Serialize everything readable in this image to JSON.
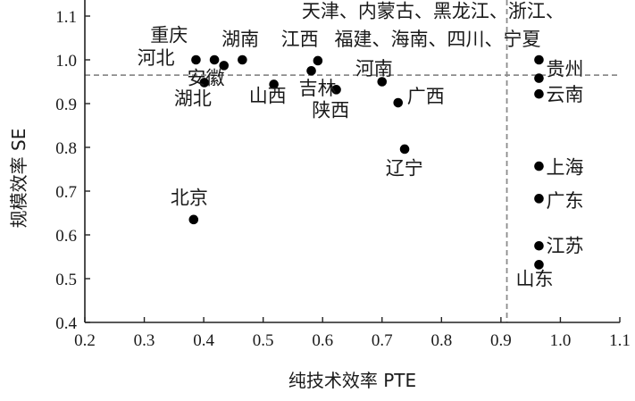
{
  "chart_data": {
    "type": "scatter",
    "xlabel": "纯技术效率 PTE",
    "ylabel": "规模效率 SE",
    "xlim": [
      0.2,
      1.1
    ],
    "ylim": [
      0.4,
      1.1
    ],
    "x_ticks": [
      "0.2",
      "0.3",
      "0.4",
      "0.5",
      "0.6",
      "0.7",
      "0.8",
      "0.9",
      "1.0",
      "1.1"
    ],
    "y_ticks": [
      "0.4",
      "0.5",
      "0.6",
      "0.7",
      "0.8",
      "0.9",
      "1.0",
      "1.1"
    ],
    "grid": false,
    "reference_lines": {
      "pte": 0.91,
      "se": 0.965
    },
    "points": [
      {
        "x": 0.387,
        "y": 1.0
      },
      {
        "x": 0.418,
        "y": 1.0
      },
      {
        "x": 0.434,
        "y": 0.987
      },
      {
        "x": 0.465,
        "y": 1.0
      },
      {
        "x": 0.401,
        "y": 0.948
      },
      {
        "x": 0.518,
        "y": 0.944
      },
      {
        "x": 0.581,
        "y": 0.975
      },
      {
        "x": 0.592,
        "y": 0.998
      },
      {
        "x": 0.623,
        "y": 0.932
      },
      {
        "x": 0.7,
        "y": 0.95
      },
      {
        "x": 0.727,
        "y": 0.902
      },
      {
        "x": 0.738,
        "y": 0.796
      },
      {
        "x": 0.383,
        "y": 0.635
      },
      {
        "x": 0.964,
        "y": 1.0
      },
      {
        "x": 0.964,
        "y": 0.958
      },
      {
        "x": 0.964,
        "y": 0.922
      },
      {
        "x": 0.964,
        "y": 0.757
      },
      {
        "x": 0.964,
        "y": 0.683
      },
      {
        "x": 0.964,
        "y": 0.575
      },
      {
        "x": 0.964,
        "y": 0.532
      }
    ],
    "labels": [
      {
        "text": "天津、内蒙古、黑龙江、浙江、",
        "x": 0.565,
        "y": 1.097
      },
      {
        "text": "重庆",
        "x": 0.31,
        "y": 1.042
      },
      {
        "text": "湖南",
        "x": 0.43,
        "y": 1.033
      },
      {
        "text": "江西",
        "x": 0.53,
        "y": 1.033
      },
      {
        "text": "福建、海南、四川、宁夏",
        "x": 0.62,
        "y": 1.033
      },
      {
        "text": "河北",
        "x": 0.288,
        "y": 0.99
      },
      {
        "text": "安徽",
        "x": 0.372,
        "y": 0.944
      },
      {
        "text": "河南",
        "x": 0.655,
        "y": 0.965
      },
      {
        "text": "贵州",
        "x": 0.976,
        "y": 0.964
      },
      {
        "text": "吉林",
        "x": 0.56,
        "y": 0.92
      },
      {
        "text": "山西",
        "x": 0.476,
        "y": 0.903
      },
      {
        "text": "湖北",
        "x": 0.35,
        "y": 0.897
      },
      {
        "text": "云南",
        "x": 0.976,
        "y": 0.906
      },
      {
        "text": "广西",
        "x": 0.742,
        "y": 0.902
      },
      {
        "text": "陕西",
        "x": 0.582,
        "y": 0.87
      },
      {
        "text": "辽宁",
        "x": 0.706,
        "y": 0.738
      },
      {
        "text": "上海",
        "x": 0.976,
        "y": 0.74
      },
      {
        "text": "广东",
        "x": 0.976,
        "y": 0.663
      },
      {
        "text": "北京",
        "x": 0.344,
        "y": 0.67
      },
      {
        "text": "江苏",
        "x": 0.976,
        "y": 0.56
      },
      {
        "text": "山东",
        "x": 0.925,
        "y": 0.485
      }
    ]
  }
}
